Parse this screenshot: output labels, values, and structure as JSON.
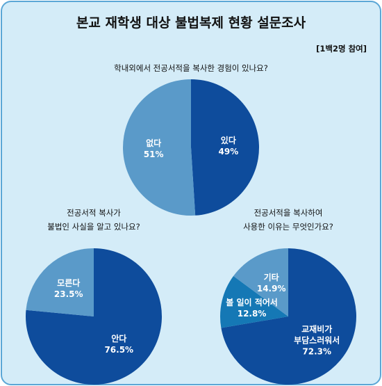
{
  "title": "본교 재학생 대상 불법복제 현황 설문조사",
  "subtitle": "[1백2명 참여]",
  "chart_data": [
    {
      "type": "pie",
      "title": [
        "학내외에서 전공서적을 복사한 경험이 있나요?"
      ],
      "categories": [
        "있다",
        "없다"
      ],
      "values": [
        49,
        51
      ],
      "value_labels": [
        "49%",
        "51%"
      ],
      "colors": [
        "#0e4c9c",
        "#5a9ac9"
      ]
    },
    {
      "type": "pie",
      "title": [
        "전공서적 복사가",
        "불법인 사실을 알고 있나요?"
      ],
      "categories": [
        "안다",
        "모른다"
      ],
      "values": [
        76.5,
        23.5
      ],
      "value_labels": [
        "76.5%",
        "23.5%"
      ],
      "colors": [
        "#0e4c9c",
        "#5a9ac9"
      ]
    },
    {
      "type": "pie",
      "title": [
        "전공서적을 복사하여",
        "사용한 이유는 무엇인가요?"
      ],
      "categories": [
        "교재비가\n부담스러워서",
        "볼 일이 적어서",
        "기타"
      ],
      "values": [
        72.3,
        12.8,
        14.9
      ],
      "value_labels": [
        "72.3%",
        "12.8%",
        "14.9%"
      ],
      "colors": [
        "#0e4c9c",
        "#1578b5",
        "#5a9ac9"
      ]
    }
  ]
}
